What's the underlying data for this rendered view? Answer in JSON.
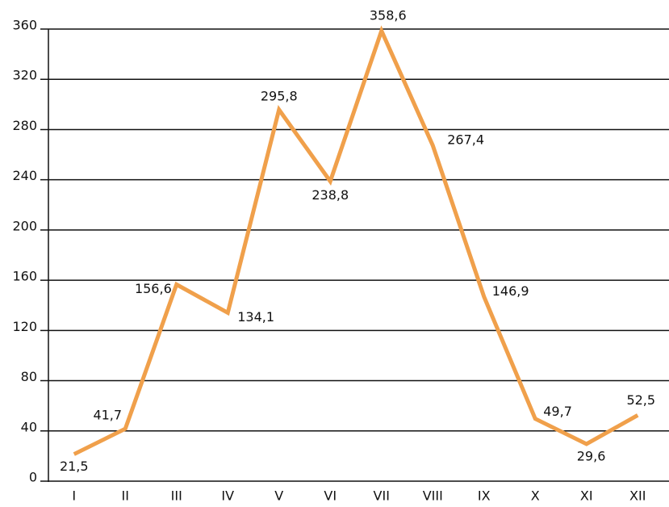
{
  "chart_data": {
    "type": "line",
    "categories": [
      "I",
      "II",
      "III",
      "IV",
      "V",
      "VI",
      "VII",
      "VIII",
      "IX",
      "X",
      "XI",
      "XII"
    ],
    "series": [
      {
        "color": "#f0a04b",
        "values": [
          21.5,
          41.7,
          156.6,
          134.1,
          295.8,
          238.8,
          358.6,
          267.4,
          146.9,
          49.7,
          29.6,
          52.5
        ],
        "value_labels": [
          "21,5",
          "41,7",
          "156,6",
          "134,1",
          "295,8",
          "238,8",
          "358,6",
          "267,4",
          "146,9",
          "49,7",
          "29,6",
          "52,5"
        ]
      }
    ],
    "ylim": [
      0,
      360
    ],
    "yticks": [
      0,
      40,
      80,
      120,
      160,
      200,
      240,
      280,
      320,
      360
    ],
    "grid": true
  }
}
